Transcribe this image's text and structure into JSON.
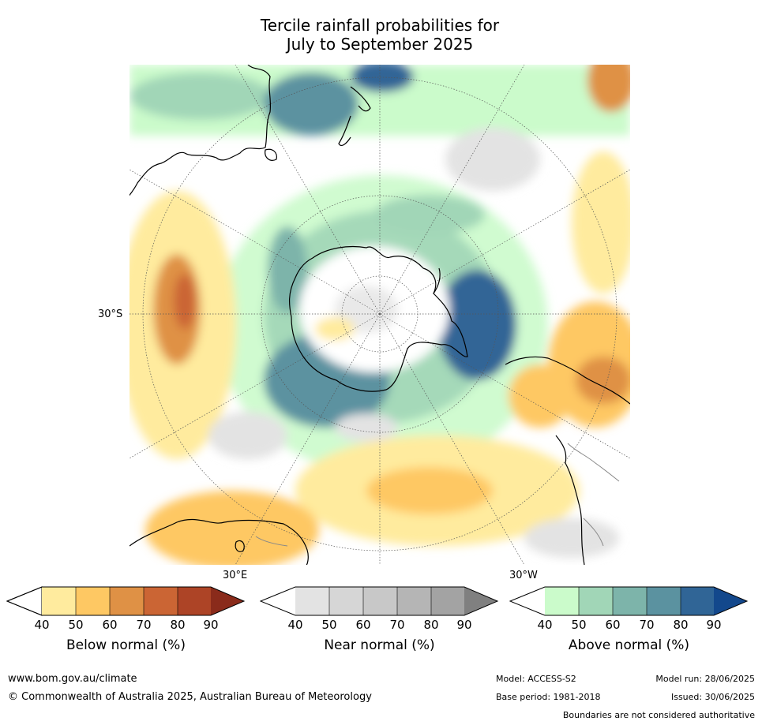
{
  "title_line1": "Tercile rainfall probabilities for",
  "title_line2": "July to September 2025",
  "map": {
    "projection": "south-polar stereographic",
    "lat_label": "30°S",
    "lon_labels": {
      "east": "30°E",
      "west": "30°W"
    },
    "colors": {
      "ocean_white": "#ffffff",
      "coastline": "#000000",
      "boundaries": "#888888"
    }
  },
  "colorbars": [
    {
      "caption": "Below normal (%)",
      "ticks": [
        "40",
        "50",
        "60",
        "70",
        "80",
        "90"
      ],
      "colors": [
        "#ffffff",
        "#ffeb9e",
        "#fec863",
        "#df9145",
        "#cb6534",
        "#ad4426",
        "#8a2b1b"
      ]
    },
    {
      "caption": "Near normal (%)",
      "ticks": [
        "40",
        "50",
        "60",
        "70",
        "80",
        "90"
      ],
      "colors": [
        "#ffffff",
        "#e3e3e3",
        "#d6d6d6",
        "#c8c8c8",
        "#b5b5b5",
        "#a3a3a3",
        "#808080"
      ]
    },
    {
      "caption": "Above normal (%)",
      "ticks": [
        "40",
        "50",
        "60",
        "70",
        "80",
        "90"
      ],
      "colors": [
        "#ffffff",
        "#cbfbcb",
        "#a1d6b7",
        "#7db4aa",
        "#5b92a0",
        "#306596",
        "#13488c"
      ]
    }
  ],
  "footer": {
    "website": "www.bom.gov.au/climate",
    "copyright": "© Commonwealth of Australia 2025, Australian Bureau of Meteorology",
    "model": "Model: ACCESS-S2",
    "model_run": "Model run: 28/06/2025",
    "base_period": "Base period: 1981-2018",
    "issued": "Issued: 30/06/2025",
    "disclaimer": "Boundaries are not considered authoritative"
  }
}
